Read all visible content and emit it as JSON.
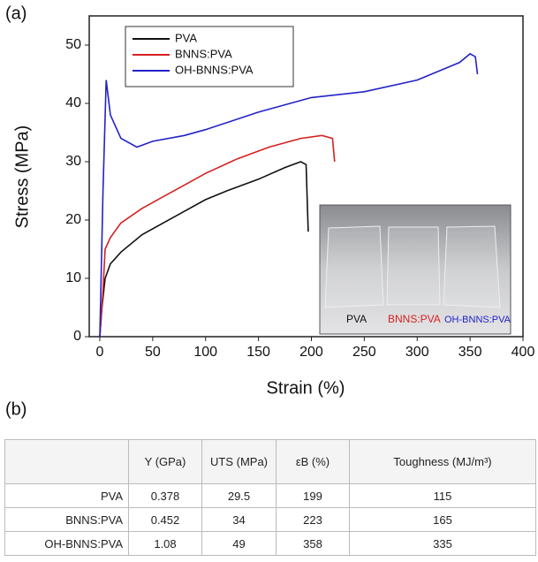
{
  "panel_labels": [
    "(a)",
    "(b)"
  ],
  "chart_data": {
    "type": "line",
    "xlabel": "Strain (%)",
    "ylabel": "Stress (MPa)",
    "xlim": [
      -10,
      400
    ],
    "ylim": [
      0,
      55
    ],
    "xticks": [
      0,
      50,
      100,
      150,
      200,
      250,
      300,
      350,
      400
    ],
    "yticks": [
      0,
      10,
      20,
      30,
      40,
      50
    ],
    "legend": "upper left",
    "series": [
      {
        "name": "PVA",
        "color": "#111111",
        "x": [
          0,
          2,
          5,
          10,
          20,
          40,
          60,
          80,
          100,
          120,
          150,
          175,
          190,
          195,
          197
        ],
        "values": [
          0,
          5,
          10,
          12.5,
          14.5,
          17.5,
          19.5,
          21.5,
          23.5,
          25,
          27,
          29,
          30,
          29.5,
          18
        ]
      },
      {
        "name": "BNNS:PVA",
        "color": "#d62020",
        "x": [
          0,
          3,
          5,
          10,
          20,
          40,
          60,
          80,
          100,
          130,
          160,
          190,
          210,
          220,
          222
        ],
        "values": [
          0,
          8,
          15,
          17,
          19.5,
          22,
          24,
          26,
          28,
          30.5,
          32.5,
          34,
          34.5,
          34,
          30
        ]
      },
      {
        "name": "OH-BNNS:PVA",
        "color": "#2222c8",
        "x": [
          0,
          3,
          6,
          10,
          20,
          35,
          50,
          80,
          100,
          150,
          200,
          250,
          300,
          340,
          350,
          355,
          357
        ],
        "values": [
          0,
          25,
          44,
          38,
          34,
          32.5,
          33.5,
          34.5,
          35.5,
          38.5,
          41,
          42,
          44,
          47,
          48.5,
          48,
          45
        ]
      }
    ]
  },
  "inset": {
    "labels": [
      "PVA",
      "BNNS:PVA",
      "OH-BNNS:PVA"
    ]
  },
  "table": {
    "header": [
      "",
      "Y (GPa)",
      "UTS (MPa)",
      "εB (%)",
      "Toughness (MJ/m³)"
    ],
    "rows": [
      [
        "PVA",
        0.378,
        29.5,
        199,
        115
      ],
      [
        "BNNS:PVA",
        0.452,
        34,
        223,
        165
      ],
      [
        "OH-BNNS:PVA",
        1.08,
        49,
        358,
        335
      ]
    ]
  }
}
